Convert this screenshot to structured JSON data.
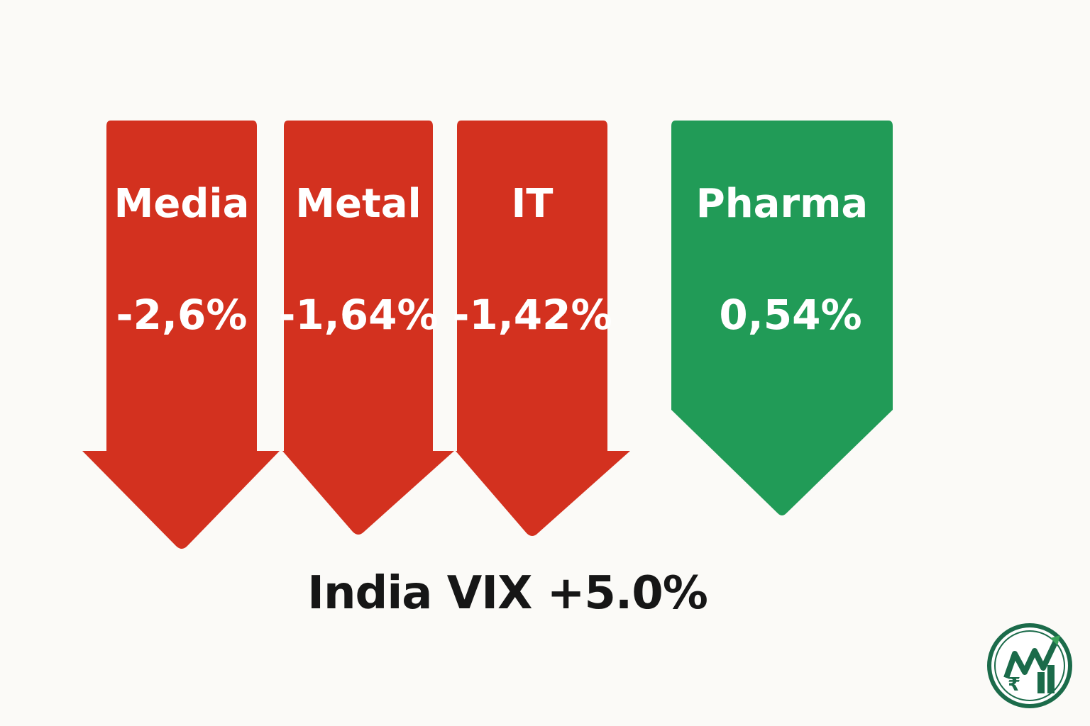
{
  "chart_data": {
    "type": "bar",
    "categories": [
      "Media",
      "Metal",
      "IT",
      "Pharma"
    ],
    "values": [
      -2.6,
      -1.64,
      -1.42,
      0.54
    ],
    "value_labels": [
      "-2,6%",
      "-1,64%",
      "-1,42%",
      "0,54%"
    ],
    "colors": [
      "#d3311f",
      "#d3311f",
      "#d3311f",
      "#219b57"
    ],
    "annotation": "India VIX +5.0%"
  },
  "colors": {
    "negative": "#d3311f",
    "positive": "#219b57",
    "background": "#fbfaf7",
    "text": "#161616"
  },
  "logo": {
    "icon": "rupee-growth-logo-icon"
  }
}
